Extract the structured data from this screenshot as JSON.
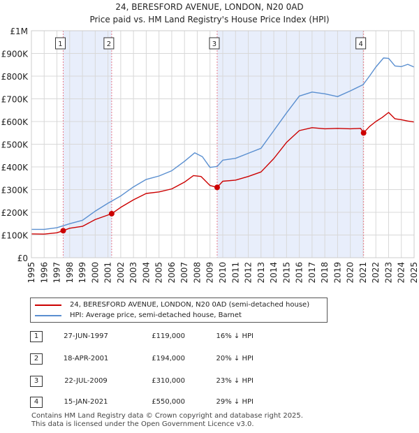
{
  "title": "24, BERESFORD AVENUE, LONDON, N20 0AD",
  "subtitle": "Price paid vs. HM Land Registry's House Price Index (HPI)",
  "colors": {
    "property": "#cc0000",
    "hpi": "#5a8fd0",
    "shade": "#e8eefb",
    "marker_line": "#e87a8a"
  },
  "chart_data": {
    "type": "line",
    "xlim": [
      1995,
      2025
    ],
    "ylim": [
      0,
      1000000
    ],
    "x_ticks": [
      1995,
      1996,
      1997,
      1998,
      1999,
      2000,
      2001,
      2002,
      2003,
      2004,
      2005,
      2006,
      2007,
      2008,
      2009,
      2010,
      2011,
      2012,
      2013,
      2014,
      2015,
      2016,
      2017,
      2018,
      2019,
      2020,
      2021,
      2022,
      2023,
      2024,
      2025
    ],
    "y_ticks": [
      {
        "value": 0,
        "label": "£0"
      },
      {
        "value": 100000,
        "label": "£100K"
      },
      {
        "value": 200000,
        "label": "£200K"
      },
      {
        "value": 300000,
        "label": "£300K"
      },
      {
        "value": 400000,
        "label": "£400K"
      },
      {
        "value": 500000,
        "label": "£500K"
      },
      {
        "value": 600000,
        "label": "£600K"
      },
      {
        "value": 700000,
        "label": "£700K"
      },
      {
        "value": 800000,
        "label": "£800K"
      },
      {
        "value": 900000,
        "label": "£900K"
      },
      {
        "value": 1000000,
        "label": "£1M"
      }
    ],
    "shaded_ranges": [
      [
        1997.49,
        2001.29
      ],
      [
        2009.56,
        2021.04
      ]
    ],
    "sales": [
      {
        "label": "1",
        "x": 1997.49,
        "y": 119000
      },
      {
        "label": "2",
        "x": 2001.29,
        "y": 194000
      },
      {
        "label": "3",
        "x": 2009.56,
        "y": 310000
      },
      {
        "label": "4",
        "x": 2021.04,
        "y": 550000
      }
    ],
    "series": [
      {
        "name": "24, BERESFORD AVENUE, LONDON, N20 0AD (semi-detached house)",
        "color": "#cc0000",
        "points": [
          [
            1995,
            105000
          ],
          [
            1996,
            104000
          ],
          [
            1997,
            110000
          ],
          [
            1997.49,
            119000
          ],
          [
            1998,
            130000
          ],
          [
            1999,
            138000
          ],
          [
            2000,
            168000
          ],
          [
            2001,
            188000
          ],
          [
            2001.29,
            194000
          ],
          [
            2002,
            222000
          ],
          [
            2003,
            255000
          ],
          [
            2004,
            283000
          ],
          [
            2005,
            290000
          ],
          [
            2006,
            303000
          ],
          [
            2007,
            333000
          ],
          [
            2007.7,
            362000
          ],
          [
            2008.3,
            358000
          ],
          [
            2009,
            318000
          ],
          [
            2009.56,
            310000
          ],
          [
            2010,
            337000
          ],
          [
            2011,
            342000
          ],
          [
            2012,
            358000
          ],
          [
            2013,
            378000
          ],
          [
            2014,
            437000
          ],
          [
            2015,
            508000
          ],
          [
            2016,
            560000
          ],
          [
            2017,
            573000
          ],
          [
            2018,
            568000
          ],
          [
            2019,
            570000
          ],
          [
            2020,
            568000
          ],
          [
            2020.8,
            570000
          ],
          [
            2021.04,
            550000
          ],
          [
            2021.5,
            578000
          ],
          [
            2022,
            600000
          ],
          [
            2022.5,
            618000
          ],
          [
            2023,
            640000
          ],
          [
            2023.5,
            612000
          ],
          [
            2024,
            608000
          ],
          [
            2024.5,
            602000
          ],
          [
            2025,
            598000
          ]
        ]
      },
      {
        "name": "HPI: Average price, semi-detached house, Barnet",
        "color": "#5a8fd0",
        "points": [
          [
            1995,
            125000
          ],
          [
            1996,
            125000
          ],
          [
            1997,
            132000
          ],
          [
            1998,
            150000
          ],
          [
            1999,
            165000
          ],
          [
            2000,
            205000
          ],
          [
            2001,
            240000
          ],
          [
            2002,
            272000
          ],
          [
            2003,
            312000
          ],
          [
            2004,
            345000
          ],
          [
            2005,
            360000
          ],
          [
            2006,
            383000
          ],
          [
            2007,
            425000
          ],
          [
            2007.8,
            462000
          ],
          [
            2008.4,
            445000
          ],
          [
            2009,
            398000
          ],
          [
            2009.56,
            402000
          ],
          [
            2010,
            430000
          ],
          [
            2011,
            438000
          ],
          [
            2012,
            460000
          ],
          [
            2013,
            482000
          ],
          [
            2014,
            560000
          ],
          [
            2015,
            638000
          ],
          [
            2016,
            712000
          ],
          [
            2017,
            730000
          ],
          [
            2018,
            722000
          ],
          [
            2019,
            710000
          ],
          [
            2020,
            735000
          ],
          [
            2021,
            762000
          ],
          [
            2021.5,
            800000
          ],
          [
            2022,
            840000
          ],
          [
            2022.6,
            880000
          ],
          [
            2023,
            878000
          ],
          [
            2023.5,
            845000
          ],
          [
            2024,
            842000
          ],
          [
            2024.5,
            852000
          ],
          [
            2025,
            840000
          ]
        ]
      }
    ]
  },
  "legend": {
    "property_label": "24, BERESFORD AVENUE, LONDON, N20 0AD (semi-detached house)",
    "hpi_label": "HPI: Average price, semi-detached house, Barnet"
  },
  "transactions": [
    {
      "num": "1",
      "date": "27-JUN-1997",
      "price": "£119,000",
      "hpi": "16% ↓ HPI"
    },
    {
      "num": "2",
      "date": "18-APR-2001",
      "price": "£194,000",
      "hpi": "20% ↓ HPI"
    },
    {
      "num": "3",
      "date": "22-JUL-2009",
      "price": "£310,000",
      "hpi": "23% ↓ HPI"
    },
    {
      "num": "4",
      "date": "15-JAN-2021",
      "price": "£550,000",
      "hpi": "29% ↓ HPI"
    }
  ],
  "footer": {
    "line1": "Contains HM Land Registry data © Crown copyright and database right 2025.",
    "line2": "This data is licensed under the Open Government Licence v3.0."
  }
}
